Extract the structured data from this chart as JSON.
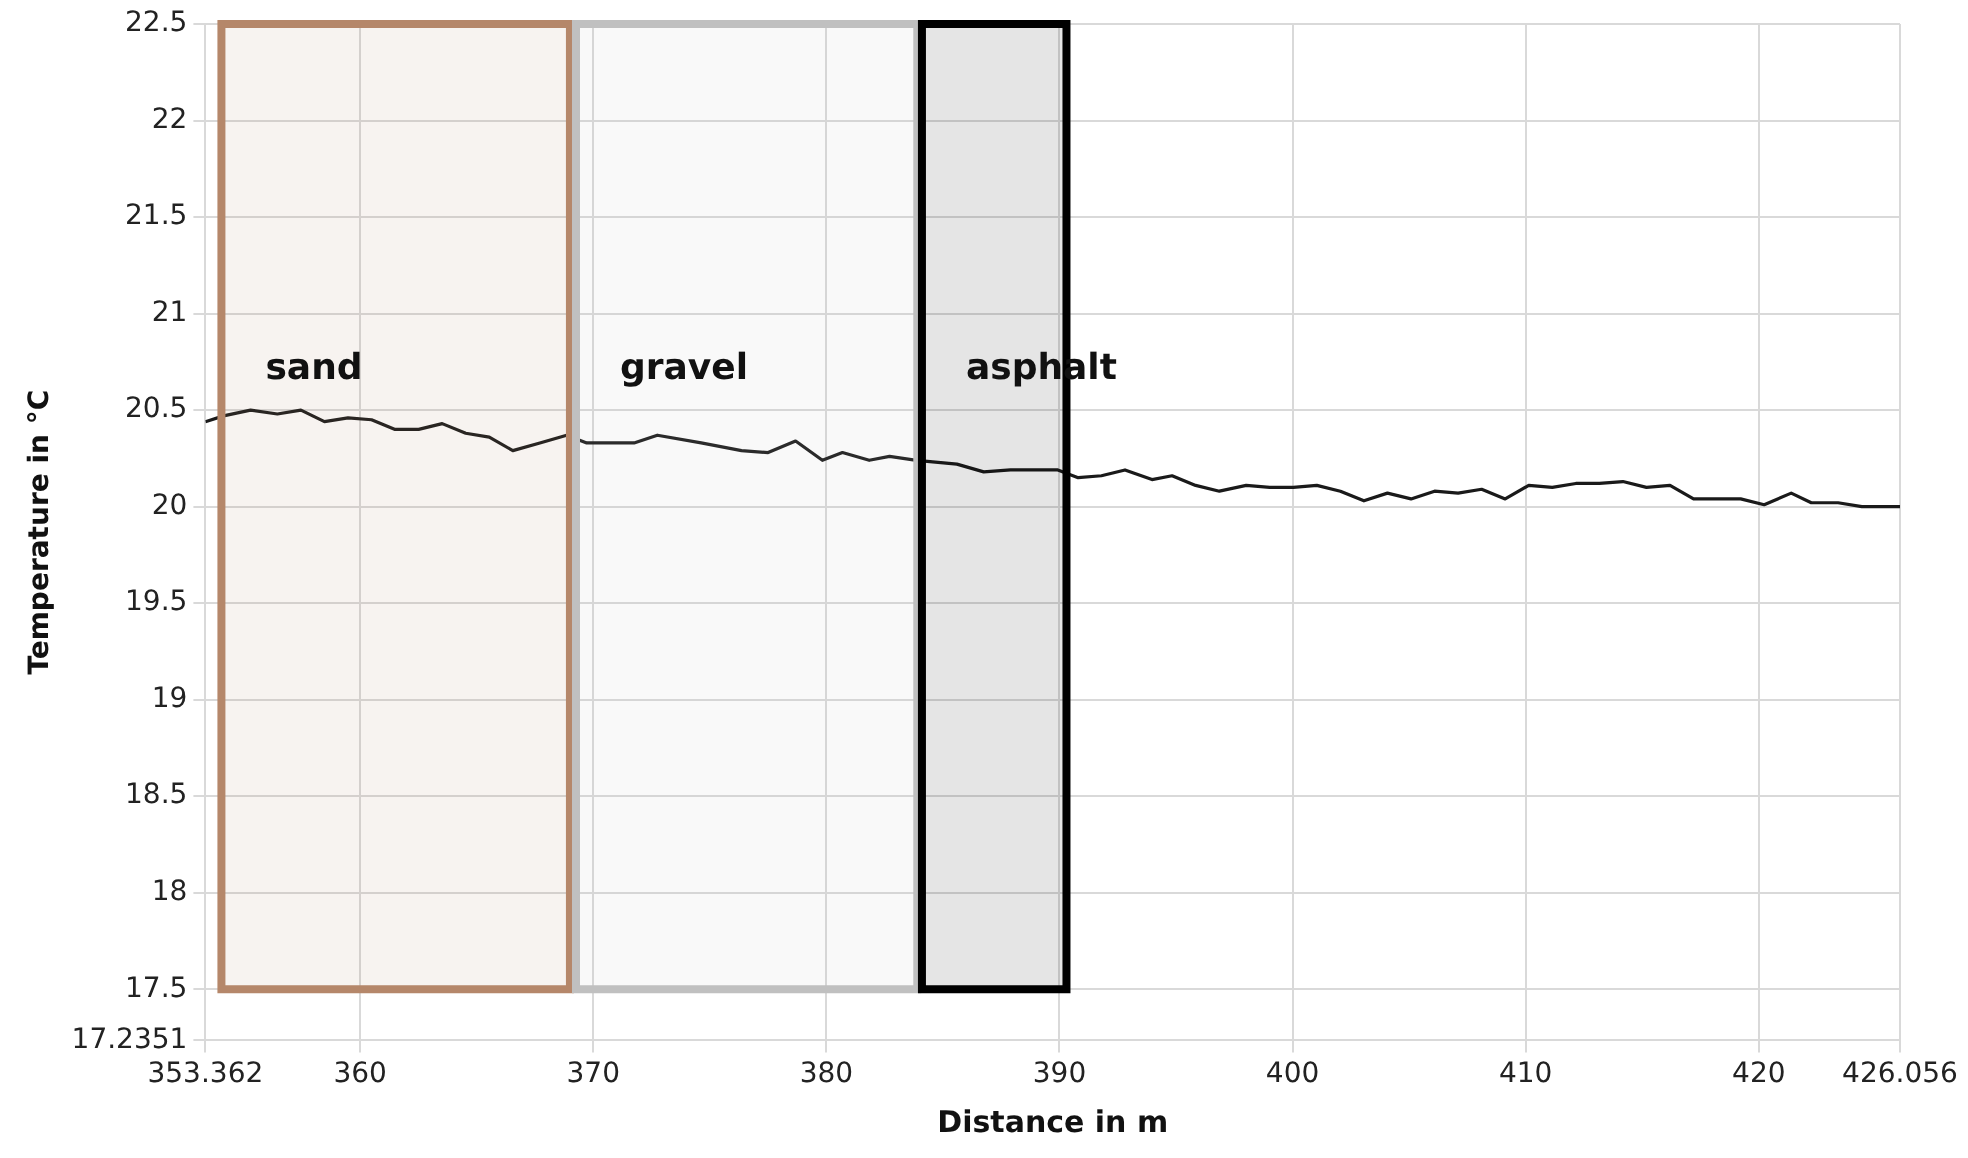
{
  "chart_data": {
    "type": "line",
    "xlabel": "Distance in m",
    "ylabel": "Temperature in °C",
    "xlim": [
      353.362,
      426.056
    ],
    "xticks": [
      353.362,
      360,
      370,
      380,
      390,
      400,
      410,
      420,
      426.056
    ],
    "ylim": [
      17.2351,
      22.5
    ],
    "yticks": [
      17.2351,
      17.5,
      18,
      18.5,
      19,
      19.5,
      20,
      20.5,
      21,
      21.5,
      22,
      22.5
    ],
    "grid": true,
    "legend": false,
    "marker": "none",
    "line_style": "solid",
    "bands": [
      {
        "axis": "x",
        "from": 354.05,
        "to": 369.0,
        "label": "sand",
        "color": "#b5876a"
      },
      {
        "axis": "x",
        "from": 369.26,
        "to": 383.9,
        "label": "gravel",
        "color": "#c0c0c0"
      },
      {
        "axis": "x",
        "from": 384.1,
        "to": 390.3,
        "label": "asphalt",
        "color": "#000000"
      }
    ],
    "series": [
      {
        "color": "#1a1a1a",
        "x": [
          353.362,
          354.14,
          355.3,
          356.45,
          357.46,
          358.47,
          359.48,
          360.49,
          361.5,
          362.51,
          363.52,
          364.53,
          365.54,
          366.55,
          367.71,
          368.86,
          369.72,
          371.75,
          372.75,
          374.63,
          376.36,
          377.5,
          378.68,
          379.83,
          380.69,
          381.84,
          382.71,
          383.87,
          385.6,
          386.75,
          387.9,
          389.93,
          390.8,
          391.8,
          392.81,
          393.97,
          394.83,
          395.84,
          396.86,
          398.01,
          399.02,
          400.03,
          401.04,
          402.05,
          403.06,
          404.07,
          405.08,
          406.09,
          407.1,
          408.11,
          409.12,
          410.13,
          411.14,
          412.15,
          413.16,
          414.17,
          415.18,
          416.19,
          417.2,
          419.22,
          420.23,
          421.39,
          422.25,
          423.4,
          424.42,
          426.056
        ],
        "values": [
          20.44,
          20.47,
          20.5,
          20.48,
          20.5,
          20.44,
          20.46,
          20.45,
          20.4,
          20.4,
          20.43,
          20.38,
          20.36,
          20.29,
          20.33,
          20.37,
          20.33,
          20.33,
          20.37,
          20.33,
          20.29,
          20.28,
          20.34,
          20.24,
          20.28,
          20.24,
          20.26,
          20.24,
          20.22,
          20.18,
          20.19,
          20.19,
          20.15,
          20.16,
          20.19,
          20.14,
          20.16,
          20.11,
          20.08,
          20.11,
          20.1,
          20.1,
          20.11,
          20.08,
          20.03,
          20.07,
          20.04,
          20.08,
          20.07,
          20.09,
          20.04,
          20.11,
          20.1,
          20.12,
          20.12,
          20.13,
          20.1,
          20.11,
          20.04,
          20.04,
          20.01,
          20.07,
          20.02,
          20.02,
          20.0,
          20.0
        ]
      }
    ]
  }
}
